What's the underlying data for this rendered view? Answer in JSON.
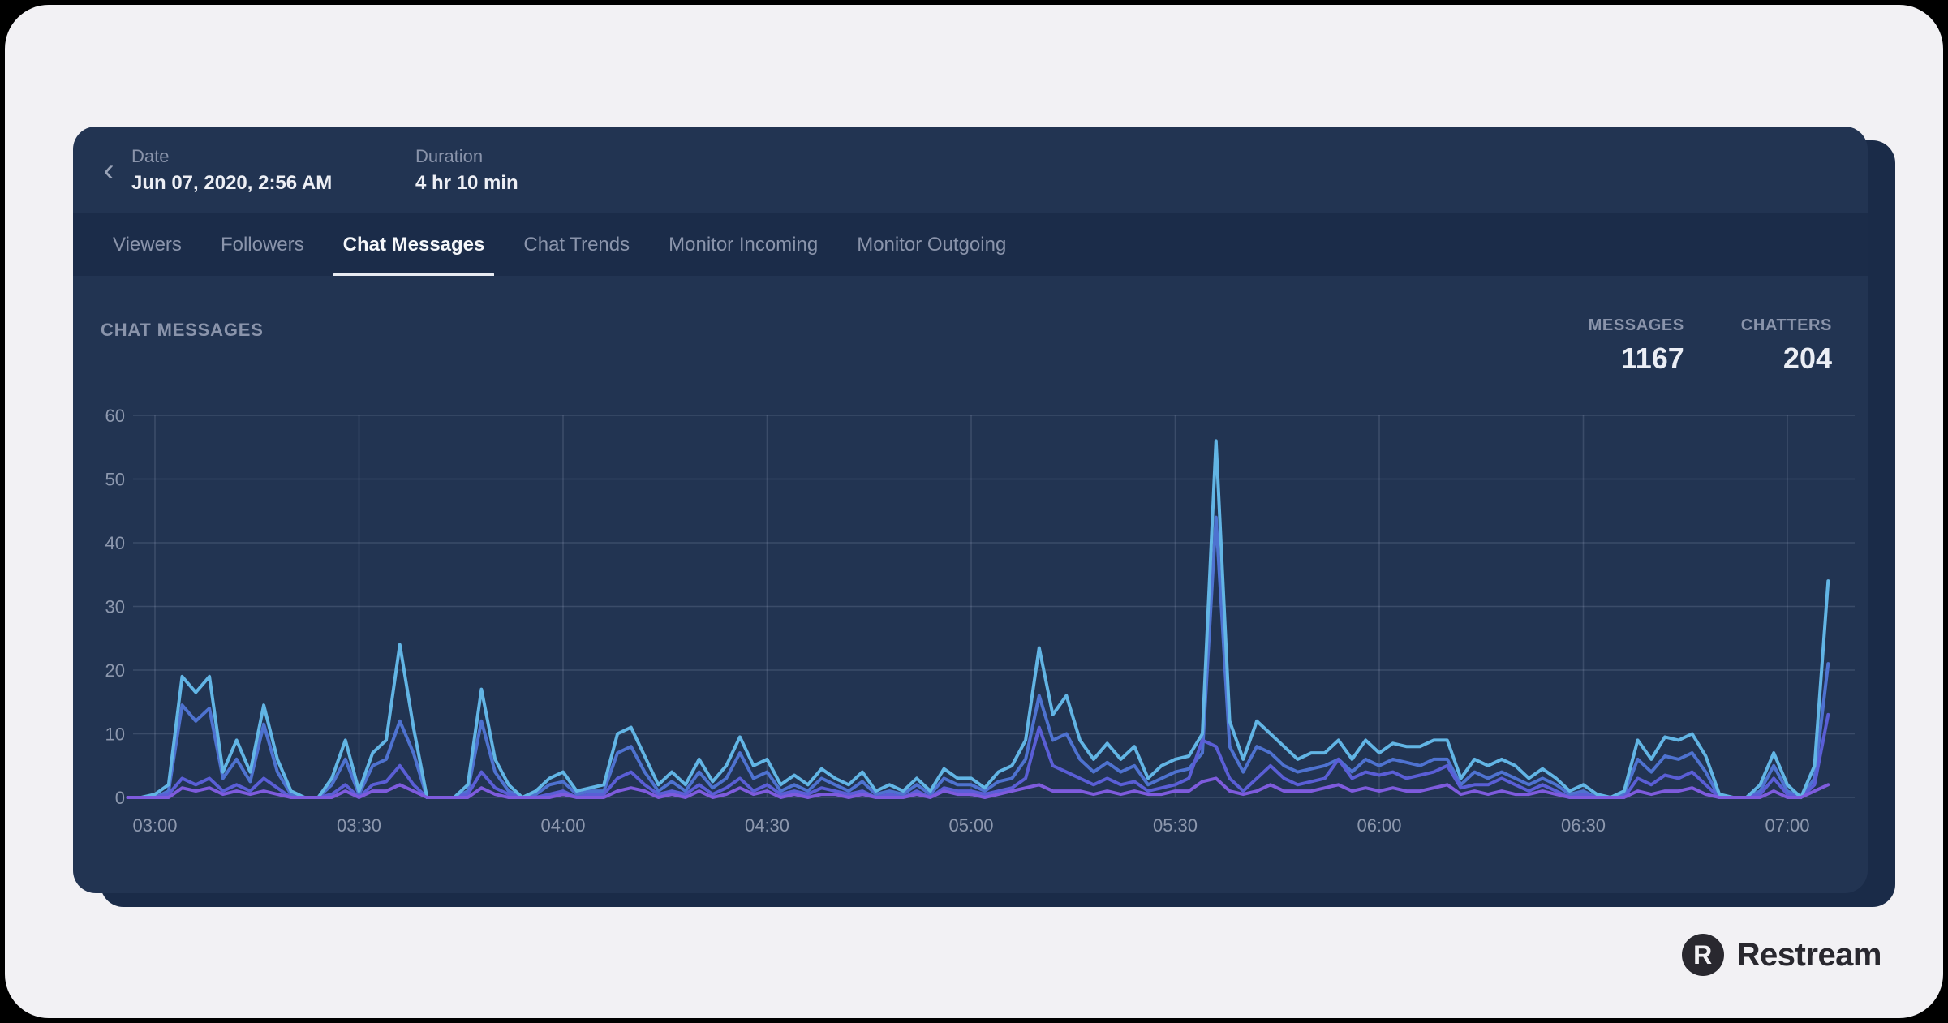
{
  "header": {
    "back_icon": "‹",
    "date_label": "Date",
    "date_value": "Jun 07, 2020, 2:56 AM",
    "duration_label": "Duration",
    "duration_value": "4 hr 10 min"
  },
  "tabs": [
    {
      "label": "Viewers",
      "active": false
    },
    {
      "label": "Followers",
      "active": false
    },
    {
      "label": "Chat Messages",
      "active": true
    },
    {
      "label": "Chat Trends",
      "active": false
    },
    {
      "label": "Monitor Incoming",
      "active": false
    },
    {
      "label": "Monitor Outgoing",
      "active": false
    }
  ],
  "chart_header": {
    "title": "CHAT MESSAGES",
    "stats": [
      {
        "label": "MESSAGES",
        "value": "1167"
      },
      {
        "label": "CHATTERS",
        "value": "204"
      }
    ]
  },
  "chart_data": {
    "type": "line",
    "title": "CHAT MESSAGES",
    "start_time": "02:56",
    "interval_minutes": 2,
    "x_tick_labels": [
      "03:00",
      "03:30",
      "04:00",
      "04:30",
      "05:00",
      "05:30",
      "06:00",
      "06:30",
      "07:00"
    ],
    "y_ticks": [
      0,
      10,
      20,
      30,
      40,
      50,
      60
    ],
    "ylim": [
      0,
      60
    ],
    "grid": true,
    "legend_position": "none",
    "series": [
      {
        "name": "messages-light-blue",
        "color": "#62B5E5",
        "values": [
          0,
          0,
          0.5,
          2,
          19,
          16.5,
          19,
          4,
          9,
          4,
          14.5,
          6,
          1,
          0,
          0,
          3,
          9,
          1,
          7,
          9,
          24,
          11,
          0,
          0,
          0,
          2,
          17,
          6,
          2,
          0,
          1,
          3,
          4,
          1,
          1.5,
          2,
          10,
          11,
          6.5,
          2,
          4,
          2,
          6,
          2.5,
          5,
          9.5,
          5,
          6,
          2,
          3.5,
          2,
          4.5,
          3,
          2,
          4,
          1,
          2,
          1,
          3,
          1,
          4.5,
          3,
          3,
          1.5,
          4,
          5,
          9,
          23.5,
          13,
          16,
          9,
          6,
          8.5,
          6,
          8,
          3,
          5,
          6,
          6.5,
          10,
          56,
          12,
          6,
          12,
          10,
          8,
          6,
          7,
          7,
          9,
          6,
          9,
          7,
          8.5,
          8,
          8,
          9,
          9,
          3,
          6,
          5,
          6,
          5,
          3,
          4.5,
          3,
          1,
          2,
          0.5,
          0,
          1,
          9,
          6,
          9.5,
          9,
          10,
          6.5,
          0.5,
          0,
          0,
          2,
          7,
          2,
          0,
          5,
          34
        ]
      },
      {
        "name": "messages-blue",
        "color": "#4E72D0",
        "values": [
          0,
          0,
          0,
          1,
          14.5,
          12,
          14,
          3,
          6,
          2.5,
          11.5,
          4,
          0.5,
          0,
          0,
          2,
          6,
          0.5,
          5,
          6,
          12,
          7,
          0,
          0,
          0,
          1,
          12,
          4,
          1,
          0,
          0.5,
          2,
          2.5,
          0.5,
          1,
          1,
          7,
          8,
          4,
          1,
          2.5,
          1,
          4,
          1.5,
          3,
          7,
          3,
          4,
          1,
          2,
          1,
          3,
          2,
          1,
          2.5,
          0.5,
          1,
          0.5,
          2,
          0.5,
          3,
          2,
          2,
          1,
          2.5,
          3,
          6,
          16,
          9,
          10,
          6,
          4,
          5.5,
          4,
          5,
          2,
          3,
          4,
          4.5,
          7,
          44,
          8,
          4,
          8,
          7,
          5,
          4,
          4.5,
          5,
          6,
          4,
          6,
          5,
          6,
          5.5,
          5,
          6,
          6,
          2,
          4,
          3,
          4,
          3,
          2,
          3,
          2,
          0.5,
          1,
          0,
          0,
          0.5,
          6,
          4,
          6.5,
          6,
          7,
          4,
          0,
          0,
          0,
          1,
          5,
          1,
          0,
          3,
          21
        ]
      },
      {
        "name": "messages-indigo",
        "color": "#5A5ED6",
        "values": [
          0,
          0,
          0,
          0.5,
          3,
          2,
          3,
          1,
          2,
          1,
          3,
          1.5,
          0,
          0,
          0,
          0.5,
          2,
          0,
          2,
          2.5,
          5,
          2,
          0,
          0,
          0,
          0.5,
          4,
          1.5,
          0.5,
          0,
          0,
          0.5,
          1,
          0,
          0.5,
          0.5,
          3,
          4,
          2,
          0.5,
          1,
          0.5,
          2,
          0.5,
          1.5,
          3,
          1,
          2,
          0.5,
          1,
          0.5,
          1.5,
          1,
          0.5,
          1,
          0,
          0.5,
          0,
          1,
          0,
          1.5,
          1,
          1,
          0.5,
          1,
          1.5,
          3,
          11,
          5,
          4,
          3,
          2,
          3,
          2,
          2.5,
          1,
          1.5,
          2,
          3,
          9,
          8,
          3,
          1,
          3,
          5,
          3,
          2,
          2.5,
          3,
          6,
          3,
          4,
          3.5,
          4,
          3,
          3.5,
          4,
          5,
          1.5,
          2,
          2,
          3,
          2,
          1,
          2,
          1,
          0,
          0.5,
          0,
          0,
          0,
          3,
          2,
          3.5,
          3,
          4,
          2,
          0,
          0,
          0,
          0.5,
          3,
          0.5,
          0,
          2,
          13
        ]
      },
      {
        "name": "messages-purple",
        "color": "#7E5BDD",
        "values": [
          0,
          0,
          0,
          0,
          1.5,
          1,
          1.5,
          0.5,
          1,
          0.5,
          1,
          0.5,
          0,
          0,
          0,
          0,
          1,
          0,
          1,
          1,
          2,
          1,
          0,
          0,
          0,
          0,
          1.5,
          0.5,
          0,
          0,
          0,
          0,
          0.5,
          0,
          0,
          0,
          1,
          1.5,
          1,
          0,
          0.5,
          0,
          1,
          0,
          0.5,
          1.5,
          0.5,
          1,
          0,
          0.5,
          0,
          0.5,
          0.5,
          0,
          0.5,
          0,
          0,
          0,
          0.5,
          0,
          1,
          0.5,
          0.5,
          0,
          0.5,
          1,
          1.5,
          2,
          1,
          1,
          1,
          0.5,
          1,
          0.5,
          1,
          0.5,
          0.5,
          1,
          1,
          2.5,
          3,
          1,
          0.5,
          1,
          2,
          1,
          1,
          1,
          1.5,
          2,
          1,
          1.5,
          1,
          1.5,
          1,
          1,
          1.5,
          2,
          0.5,
          1,
          0.5,
          1,
          0.5,
          0.5,
          1,
          0.5,
          0,
          0,
          0,
          0,
          0,
          1,
          0.5,
          1,
          1,
          1.5,
          0.5,
          0,
          0,
          0,
          0,
          1,
          0,
          0,
          1,
          2
        ]
      }
    ]
  },
  "branding": {
    "logo_letter": "R",
    "name": "Restream"
  },
  "colors": {
    "panel_bg": "#223452",
    "tab_bar_bg": "#1B2C49",
    "panel_edge": "#1A2B48",
    "card_bg": "#F2F1F4",
    "text_muted": "#8A94AB",
    "text_bright": "#EDEFF5",
    "grid_line": "rgba(190,205,230,0.16)"
  }
}
